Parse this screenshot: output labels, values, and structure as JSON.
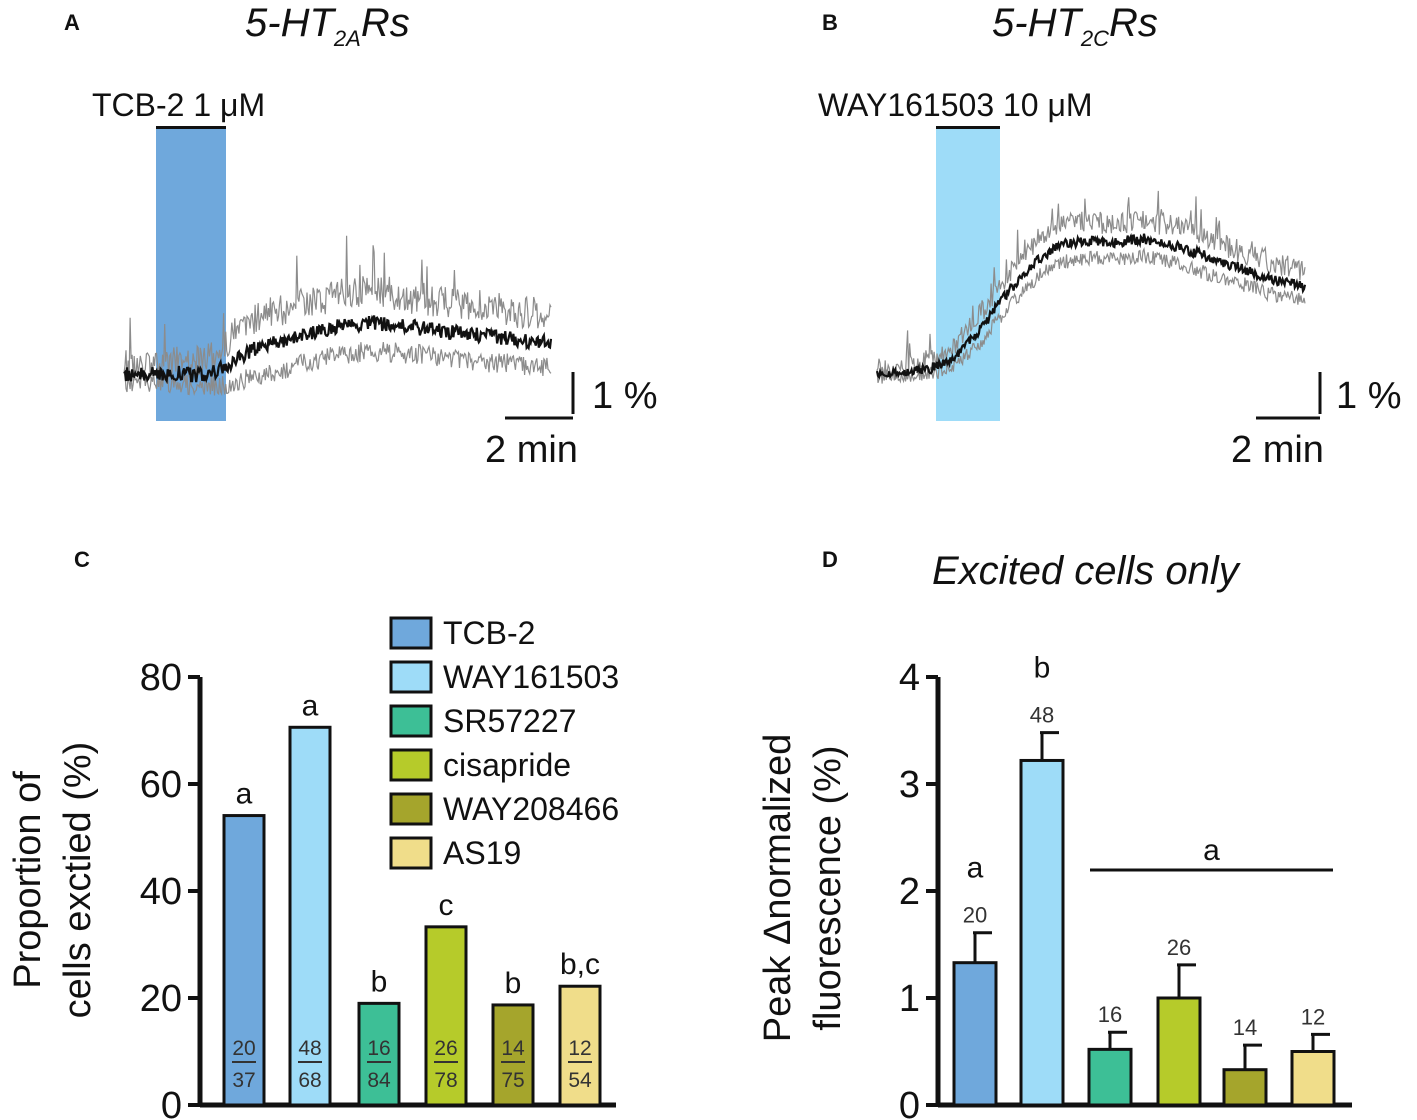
{
  "panels": {
    "A": {
      "letter": "A",
      "title_main": "5-HT",
      "title_sub": "2A",
      "title_tail": "Rs",
      "drug_label": "TCB-2 1 μM",
      "shade_color": "#6fa8dc",
      "scale_y_label": "1 %",
      "scale_x_label": "2 min"
    },
    "B": {
      "letter": "B",
      "title_main": "5-HT",
      "title_sub": "2C",
      "title_tail": "Rs",
      "drug_label": "WAY161503 10 μM",
      "shade_color": "#9edcf8",
      "scale_y_label": "1 %",
      "scale_x_label": "2 min"
    },
    "C": {
      "letter": "C"
    },
    "D": {
      "letter": "D",
      "title": "Excited cells only"
    }
  },
  "legend": {
    "items": [
      {
        "label": "TCB-2",
        "color": "#6fa8dc"
      },
      {
        "label": "WAY161503",
        "color": "#9edcf8"
      },
      {
        "label": "SR57227",
        "color": "#3dbf96"
      },
      {
        "label": "cisapride",
        "color": "#b6cb2a"
      },
      {
        "label": "WAY208466",
        "color": "#a5a52c"
      },
      {
        "label": "AS19",
        "color": "#f0dd8a"
      }
    ]
  },
  "chart_data": [
    {
      "type": "line",
      "panel": "A",
      "title": "5-HT2ARs",
      "description_units": "normalized fluorescence change (%) vs time (min)",
      "drug": "TCB-2 1 μM",
      "drug_window_min": [
        0.9,
        2.8
      ],
      "x": [
        0,
        0.5,
        1.0,
        1.5,
        2.0,
        2.5,
        3.0,
        3.5,
        4.0,
        4.5,
        5.0,
        5.5,
        6.0,
        6.5,
        7.0,
        7.5,
        8.0,
        8.5,
        9.0,
        9.5,
        10.0,
        10.5,
        11.0,
        11.5,
        12.0
      ],
      "mean": [
        0.0,
        0.05,
        0.0,
        0.05,
        0.0,
        0.05,
        0.3,
        0.55,
        0.75,
        0.8,
        0.95,
        1.05,
        1.15,
        1.2,
        1.25,
        1.2,
        1.15,
        1.1,
        1.05,
        1.0,
        0.95,
        0.9,
        0.85,
        0.8,
        0.75
      ],
      "sem": [
        0.2,
        0.2,
        0.2,
        0.25,
        0.3,
        0.35,
        0.6,
        0.7,
        0.75,
        0.75,
        0.75,
        0.75,
        0.75,
        0.75,
        0.75,
        0.75,
        0.7,
        0.7,
        0.7,
        0.7,
        0.7,
        0.7,
        0.65,
        0.65,
        0.6
      ],
      "scale_bar": {
        "y": "1 %",
        "x": "2 min"
      }
    },
    {
      "type": "line",
      "panel": "B",
      "title": "5-HT2CRs",
      "description_units": "normalized fluorescence change (%) vs time (min)",
      "drug": "WAY161503 10 μM",
      "drug_window_min": [
        1.6,
        3.3
      ],
      "x": [
        0,
        0.5,
        1.0,
        1.5,
        2.0,
        2.5,
        3.0,
        3.5,
        4.0,
        4.5,
        5.0,
        5.5,
        6.0,
        6.5,
        7.0,
        7.5,
        8.0,
        8.5,
        9.0,
        9.5,
        10.0,
        10.5,
        11.0,
        11.5,
        12.0
      ],
      "mean": [
        0.0,
        0.0,
        0.05,
        0.1,
        0.3,
        0.65,
        1.15,
        1.75,
        2.25,
        2.7,
        3.0,
        3.1,
        3.15,
        3.1,
        3.15,
        3.2,
        3.1,
        3.0,
        2.85,
        2.7,
        2.55,
        2.4,
        2.25,
        2.15,
        2.05
      ],
      "sem": [
        0.1,
        0.1,
        0.1,
        0.15,
        0.2,
        0.3,
        0.35,
        0.4,
        0.45,
        0.45,
        0.45,
        0.45,
        0.45,
        0.45,
        0.45,
        0.45,
        0.45,
        0.45,
        0.45,
        0.45,
        0.4,
        0.4,
        0.4,
        0.4,
        0.35
      ],
      "scale_bar": {
        "y": "1 %",
        "x": "2 min"
      }
    },
    {
      "type": "bar",
      "panel": "C",
      "ylabel_line1": "Proportion of",
      "ylabel_line2": "cells exctied (%)",
      "ylim": [
        0,
        80
      ],
      "yticks": [
        0,
        20,
        40,
        60,
        80
      ],
      "categories": [
        "TCB-2",
        "WAY161503",
        "SR57227",
        "cisapride",
        "WAY208466",
        "AS19"
      ],
      "values": [
        54.1,
        70.6,
        19.0,
        33.3,
        18.7,
        22.2
      ],
      "significance": [
        "a",
        "a",
        "b",
        "c",
        "b",
        "b,c"
      ],
      "fractions": [
        {
          "num": "20",
          "den": "37"
        },
        {
          "num": "48",
          "den": "68"
        },
        {
          "num": "16",
          "den": "84"
        },
        {
          "num": "26",
          "den": "78"
        },
        {
          "num": "14",
          "den": "75"
        },
        {
          "num": "12",
          "den": "54"
        }
      ]
    },
    {
      "type": "bar",
      "panel": "D",
      "title": "Excited cells only",
      "ylabel_line1": "Peak Δnormalized",
      "ylabel_line2": "fluorescence (%)",
      "ylim": [
        0,
        4
      ],
      "yticks": [
        0,
        1,
        2,
        3,
        4
      ],
      "categories": [
        "TCB-2",
        "WAY161503",
        "SR57227",
        "cisapride",
        "WAY208466",
        "AS19"
      ],
      "values": [
        1.33,
        3.22,
        0.52,
        1.0,
        0.33,
        0.5
      ],
      "errors": [
        0.28,
        0.26,
        0.16,
        0.31,
        0.23,
        0.16
      ],
      "n": [
        "20",
        "48",
        "16",
        "26",
        "14",
        "12"
      ],
      "significance_single": [
        "a",
        "b"
      ],
      "significance_group": {
        "label": "a",
        "from_index": 2,
        "to_index": 5
      }
    }
  ]
}
